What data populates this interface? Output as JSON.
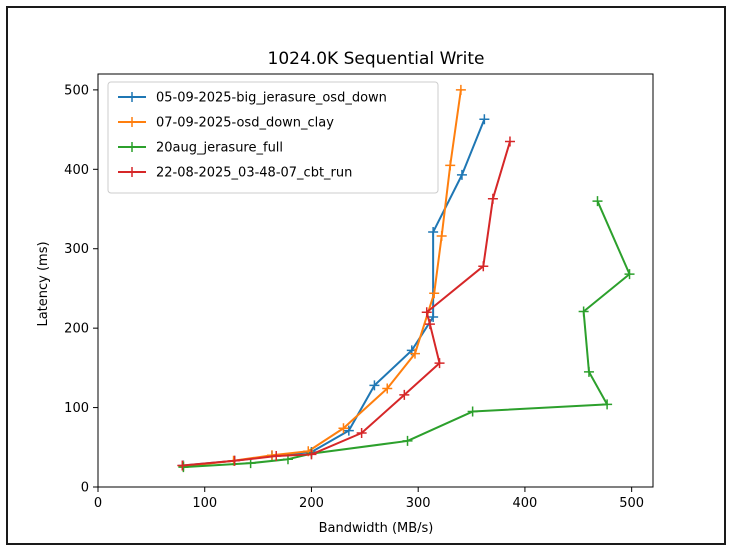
{
  "chart_data": {
    "type": "line",
    "title": "1024.0K  Sequential Write",
    "xlabel": "Bandwidth (MB/s)",
    "ylabel": "Latency (ms)",
    "xlim": [
      0,
      520
    ],
    "ylim": [
      0,
      520
    ],
    "xticks": [
      "0",
      "100",
      "200",
      "300",
      "400",
      "500"
    ],
    "yticks": [
      "0",
      "100",
      "200",
      "300",
      "400",
      "500"
    ],
    "legend_position": "top-left",
    "grid": false,
    "series": [
      {
        "name": "05-09-2025-big_jerasure_osd_down",
        "color": "#1f77b4",
        "points": [
          [
            80,
            27
          ],
          [
            128,
            33
          ],
          [
            163,
            39
          ],
          [
            200,
            44
          ],
          [
            235,
            71
          ],
          [
            259,
            128
          ],
          [
            294,
            172
          ],
          [
            314,
            214
          ],
          [
            314,
            321
          ],
          [
            341,
            393
          ],
          [
            362,
            463
          ]
        ]
      },
      {
        "name": "07-09-2025-osd_down_clay",
        "color": "#ff7f0e",
        "points": [
          [
            80,
            26
          ],
          [
            127,
            33
          ],
          [
            163,
            40
          ],
          [
            197,
            45
          ],
          [
            230,
            74
          ],
          [
            271,
            124
          ],
          [
            297,
            168
          ],
          [
            315,
            244
          ],
          [
            322,
            316
          ],
          [
            330,
            405
          ],
          [
            340,
            500
          ]
        ]
      },
      {
        "name": "20aug_jerasure_full",
        "color": "#2ca02c",
        "points": [
          [
            80,
            25
          ],
          [
            143,
            30
          ],
          [
            178,
            35
          ],
          [
            200,
            42
          ],
          [
            290,
            58
          ],
          [
            351,
            95
          ],
          [
            477,
            104
          ],
          [
            460,
            145
          ],
          [
            455,
            221
          ],
          [
            498,
            268
          ],
          [
            468,
            360
          ]
        ]
      },
      {
        "name": "22-08-2025_03-48-07_cbt_run",
        "color": "#d62728",
        "points": [
          [
            79,
            27
          ],
          [
            128,
            33
          ],
          [
            167,
            39
          ],
          [
            200,
            41
          ],
          [
            247,
            68
          ],
          [
            287,
            116
          ],
          [
            320,
            156
          ],
          [
            311,
            205
          ],
          [
            308,
            220
          ],
          [
            361,
            278
          ],
          [
            370,
            363
          ],
          [
            386,
            435
          ]
        ]
      }
    ]
  }
}
